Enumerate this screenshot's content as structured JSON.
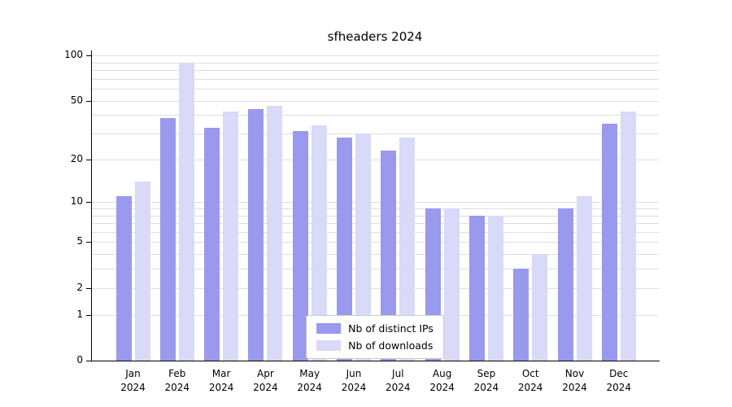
{
  "chart_data": {
    "type": "bar",
    "title": "sfheaders 2024",
    "year_label": "2024",
    "categories": [
      "Jan",
      "Feb",
      "Mar",
      "Apr",
      "May",
      "Jun",
      "Jul",
      "Aug",
      "Sep",
      "Oct",
      "Nov",
      "Dec"
    ],
    "series": [
      {
        "name": "Nb of distinct IPs",
        "color": "#9999ee",
        "values": [
          11,
          38,
          33,
          44,
          31,
          28,
          23,
          9,
          8,
          3,
          9,
          35
        ]
      },
      {
        "name": "Nb of downloads",
        "color": "#d9d9f8",
        "values": [
          14,
          88,
          42,
          46,
          34,
          30,
          28,
          9,
          8,
          4,
          11,
          42
        ]
      }
    ],
    "yscale": "log10(v+1)",
    "ymax": 100,
    "yticks": [
      0,
      1,
      2,
      5,
      10,
      20,
      50,
      100
    ],
    "gridlines": [
      1,
      2,
      3,
      4,
      5,
      6,
      7,
      8,
      9,
      10,
      20,
      30,
      40,
      50,
      60,
      70,
      80,
      90,
      100
    ],
    "grid_color": "#dedede",
    "legend_position": "bottom-center",
    "xlabel": "",
    "ylabel": ""
  }
}
